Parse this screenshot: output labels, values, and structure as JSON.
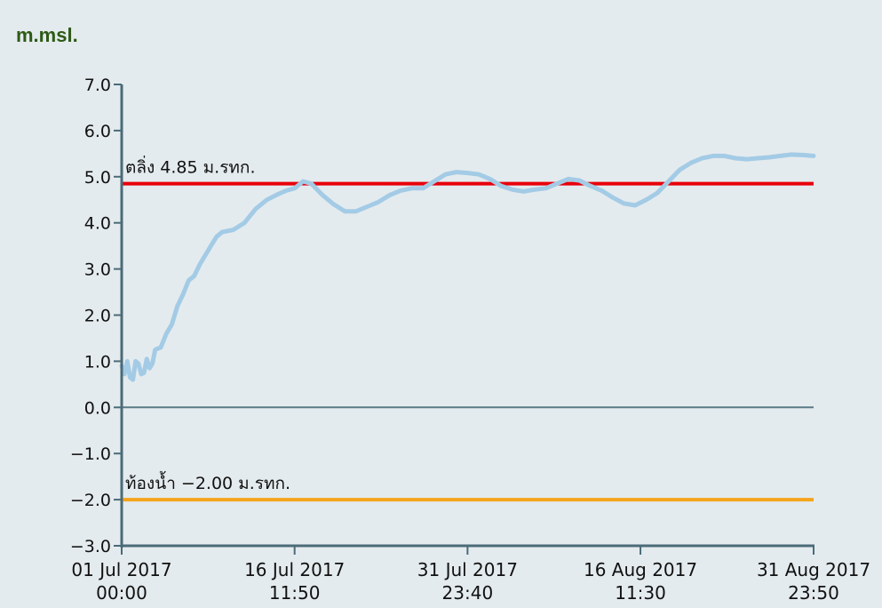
{
  "unit_label": "m.msl.",
  "chart_data": {
    "type": "line",
    "title": "",
    "xlabel": "",
    "ylabel": "m.msl.",
    "ylim": [
      -3.0,
      7.0
    ],
    "yticks": [
      "7.0",
      "6.0",
      "5.0",
      "4.0",
      "3.0",
      "2.0",
      "1.0",
      "0.0",
      "−1.0",
      "−2.0",
      "−3.0"
    ],
    "ytick_values": [
      7,
      6,
      5,
      4,
      3,
      2,
      1,
      0,
      -1,
      -2,
      -3
    ],
    "xlim": [
      "2017-07-01 00:00",
      "2017-08-31 23:50"
    ],
    "xticks": [
      {
        "x": "2017-07-01 00:00",
        "date": "01 Jul 2017",
        "time": "00:00"
      },
      {
        "x": "2017-07-16 11:50",
        "date": "16 Jul 2017",
        "time": "11:50"
      },
      {
        "x": "2017-07-31 23:40",
        "date": "31 Jul 2017",
        "time": "23:40"
      },
      {
        "x": "2017-08-16 11:30",
        "date": "16 Aug 2017",
        "time": "11:30"
      },
      {
        "x": "2017-08-31 23:50",
        "date": "31 Aug 2017",
        "time": "23:50"
      }
    ],
    "grid": false,
    "reference_lines": [
      {
        "y": 4.85,
        "label": "ตลิ่ง 4.85 ม.รทก.",
        "color": "#e8000b"
      },
      {
        "y": 0.0,
        "label": "",
        "color": "#5a7a86"
      },
      {
        "y": -2.0,
        "label": "ท้องน้ำ −2.00 ม.รทก.",
        "color": "#f5a51c"
      }
    ],
    "series": [
      {
        "color": "#a3cbe6",
        "points": [
          [
            "2017-07-01 00:00",
            0.9
          ],
          [
            "2017-07-01 06:00",
            0.72
          ],
          [
            "2017-07-01 12:00",
            1.0
          ],
          [
            "2017-07-01 18:00",
            0.65
          ],
          [
            "2017-07-02 00:00",
            0.6
          ],
          [
            "2017-07-02 06:00",
            1.0
          ],
          [
            "2017-07-02 12:00",
            0.95
          ],
          [
            "2017-07-02 18:00",
            0.72
          ],
          [
            "2017-07-03 00:00",
            0.75
          ],
          [
            "2017-07-03 06:00",
            1.05
          ],
          [
            "2017-07-03 12:00",
            0.85
          ],
          [
            "2017-07-03 18:00",
            0.95
          ],
          [
            "2017-07-04 00:00",
            1.25
          ],
          [
            "2017-07-04 12:00",
            1.3
          ],
          [
            "2017-07-05 00:00",
            1.6
          ],
          [
            "2017-07-05 12:00",
            1.8
          ],
          [
            "2017-07-06 00:00",
            2.2
          ],
          [
            "2017-07-06 12:00",
            2.45
          ],
          [
            "2017-07-07 00:00",
            2.75
          ],
          [
            "2017-07-07 12:00",
            2.85
          ],
          [
            "2017-07-08 00:00",
            3.1
          ],
          [
            "2017-07-08 12:00",
            3.3
          ],
          [
            "2017-07-09 00:00",
            3.5
          ],
          [
            "2017-07-09 12:00",
            3.7
          ],
          [
            "2017-07-10 00:00",
            3.8
          ],
          [
            "2017-07-11 00:00",
            3.85
          ],
          [
            "2017-07-12 00:00",
            4.0
          ],
          [
            "2017-07-13 00:00",
            4.3
          ],
          [
            "2017-07-14 00:00",
            4.5
          ],
          [
            "2017-07-15 00:00",
            4.62
          ],
          [
            "2017-07-15 18:00",
            4.7
          ],
          [
            "2017-07-16 12:00",
            4.75
          ],
          [
            "2017-07-17 06:00",
            4.9
          ],
          [
            "2017-07-18 00:00",
            4.85
          ],
          [
            "2017-07-19 00:00",
            4.6
          ],
          [
            "2017-07-20 00:00",
            4.4
          ],
          [
            "2017-07-21 00:00",
            4.25
          ],
          [
            "2017-07-22 00:00",
            4.25
          ],
          [
            "2017-07-23 00:00",
            4.35
          ],
          [
            "2017-07-24 00:00",
            4.45
          ],
          [
            "2017-07-25 00:00",
            4.6
          ],
          [
            "2017-07-26 00:00",
            4.7
          ],
          [
            "2017-07-27 00:00",
            4.75
          ],
          [
            "2017-07-28 00:00",
            4.75
          ],
          [
            "2017-07-29 00:00",
            4.9
          ],
          [
            "2017-07-30 00:00",
            5.05
          ],
          [
            "2017-07-31 00:00",
            5.1
          ],
          [
            "2017-08-01 00:00",
            5.08
          ],
          [
            "2017-08-02 00:00",
            5.05
          ],
          [
            "2017-08-03 00:00",
            4.95
          ],
          [
            "2017-08-04 00:00",
            4.8
          ],
          [
            "2017-08-05 00:00",
            4.72
          ],
          [
            "2017-08-06 00:00",
            4.68
          ],
          [
            "2017-08-07 00:00",
            4.72
          ],
          [
            "2017-08-08 00:00",
            4.75
          ],
          [
            "2017-08-09 00:00",
            4.85
          ],
          [
            "2017-08-10 00:00",
            4.95
          ],
          [
            "2017-08-11 00:00",
            4.92
          ],
          [
            "2017-08-12 00:00",
            4.8
          ],
          [
            "2017-08-13 00:00",
            4.7
          ],
          [
            "2017-08-14 00:00",
            4.55
          ],
          [
            "2017-08-15 00:00",
            4.42
          ],
          [
            "2017-08-16 00:00",
            4.38
          ],
          [
            "2017-08-17 00:00",
            4.5
          ],
          [
            "2017-08-18 00:00",
            4.65
          ],
          [
            "2017-08-19 00:00",
            4.9
          ],
          [
            "2017-08-20 00:00",
            5.15
          ],
          [
            "2017-08-21 00:00",
            5.3
          ],
          [
            "2017-08-22 00:00",
            5.4
          ],
          [
            "2017-08-23 00:00",
            5.45
          ],
          [
            "2017-08-24 00:00",
            5.45
          ],
          [
            "2017-08-25 00:00",
            5.4
          ],
          [
            "2017-08-26 00:00",
            5.38
          ],
          [
            "2017-08-27 00:00",
            5.4
          ],
          [
            "2017-08-28 00:00",
            5.42
          ],
          [
            "2017-08-29 00:00",
            5.45
          ],
          [
            "2017-08-30 00:00",
            5.48
          ],
          [
            "2017-08-31 00:00",
            5.47
          ],
          [
            "2017-08-31 23:50",
            5.45
          ]
        ]
      }
    ]
  }
}
